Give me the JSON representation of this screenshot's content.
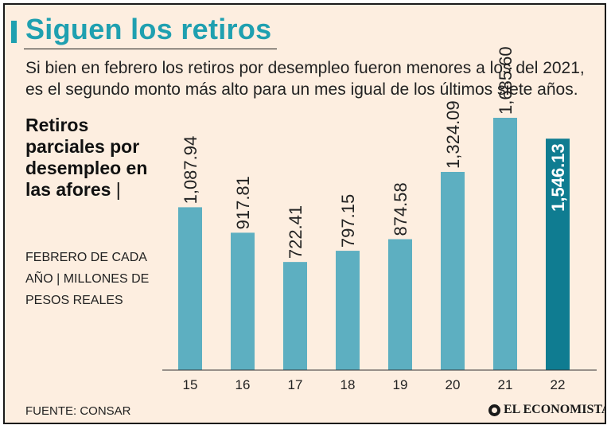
{
  "header": {
    "title": "Siguen los retiros",
    "subtitle": "Si bien en febrero los retiros por desempleo fueron menores a los del 2021, es el segundo monto más alto para un mes igual de los últimos siete años."
  },
  "legend": {
    "measure": "Retiros parciales por desempleo en las afores",
    "separator": "|",
    "units": "Febrero de cada año | millones de pesos reales"
  },
  "footer": {
    "source": "FUENTE: CONSAR",
    "brand": "EL ECONOMISTA"
  },
  "colors": {
    "bar": "#5dafc1",
    "highlight": "#0f7c91",
    "title": "#1fa0b0",
    "background": "#fdeee0"
  },
  "chart_data": {
    "type": "bar",
    "title": "Siguen los retiros",
    "xlabel": "",
    "ylabel": "Millones de pesos reales",
    "categories": [
      "15",
      "16",
      "17",
      "18",
      "19",
      "20",
      "21",
      "22"
    ],
    "values": [
      1087.94,
      917.81,
      722.41,
      797.15,
      874.58,
      1324.09,
      1685.6,
      1546.13
    ],
    "labels": [
      "1,087.94",
      "917.81",
      "722.41",
      "797.15",
      "874.58",
      "1,324.09",
      "1,685.60",
      "1,546.13"
    ],
    "highlight_index": 7,
    "ylim": [
      0,
      1685.6
    ],
    "grid": false
  }
}
